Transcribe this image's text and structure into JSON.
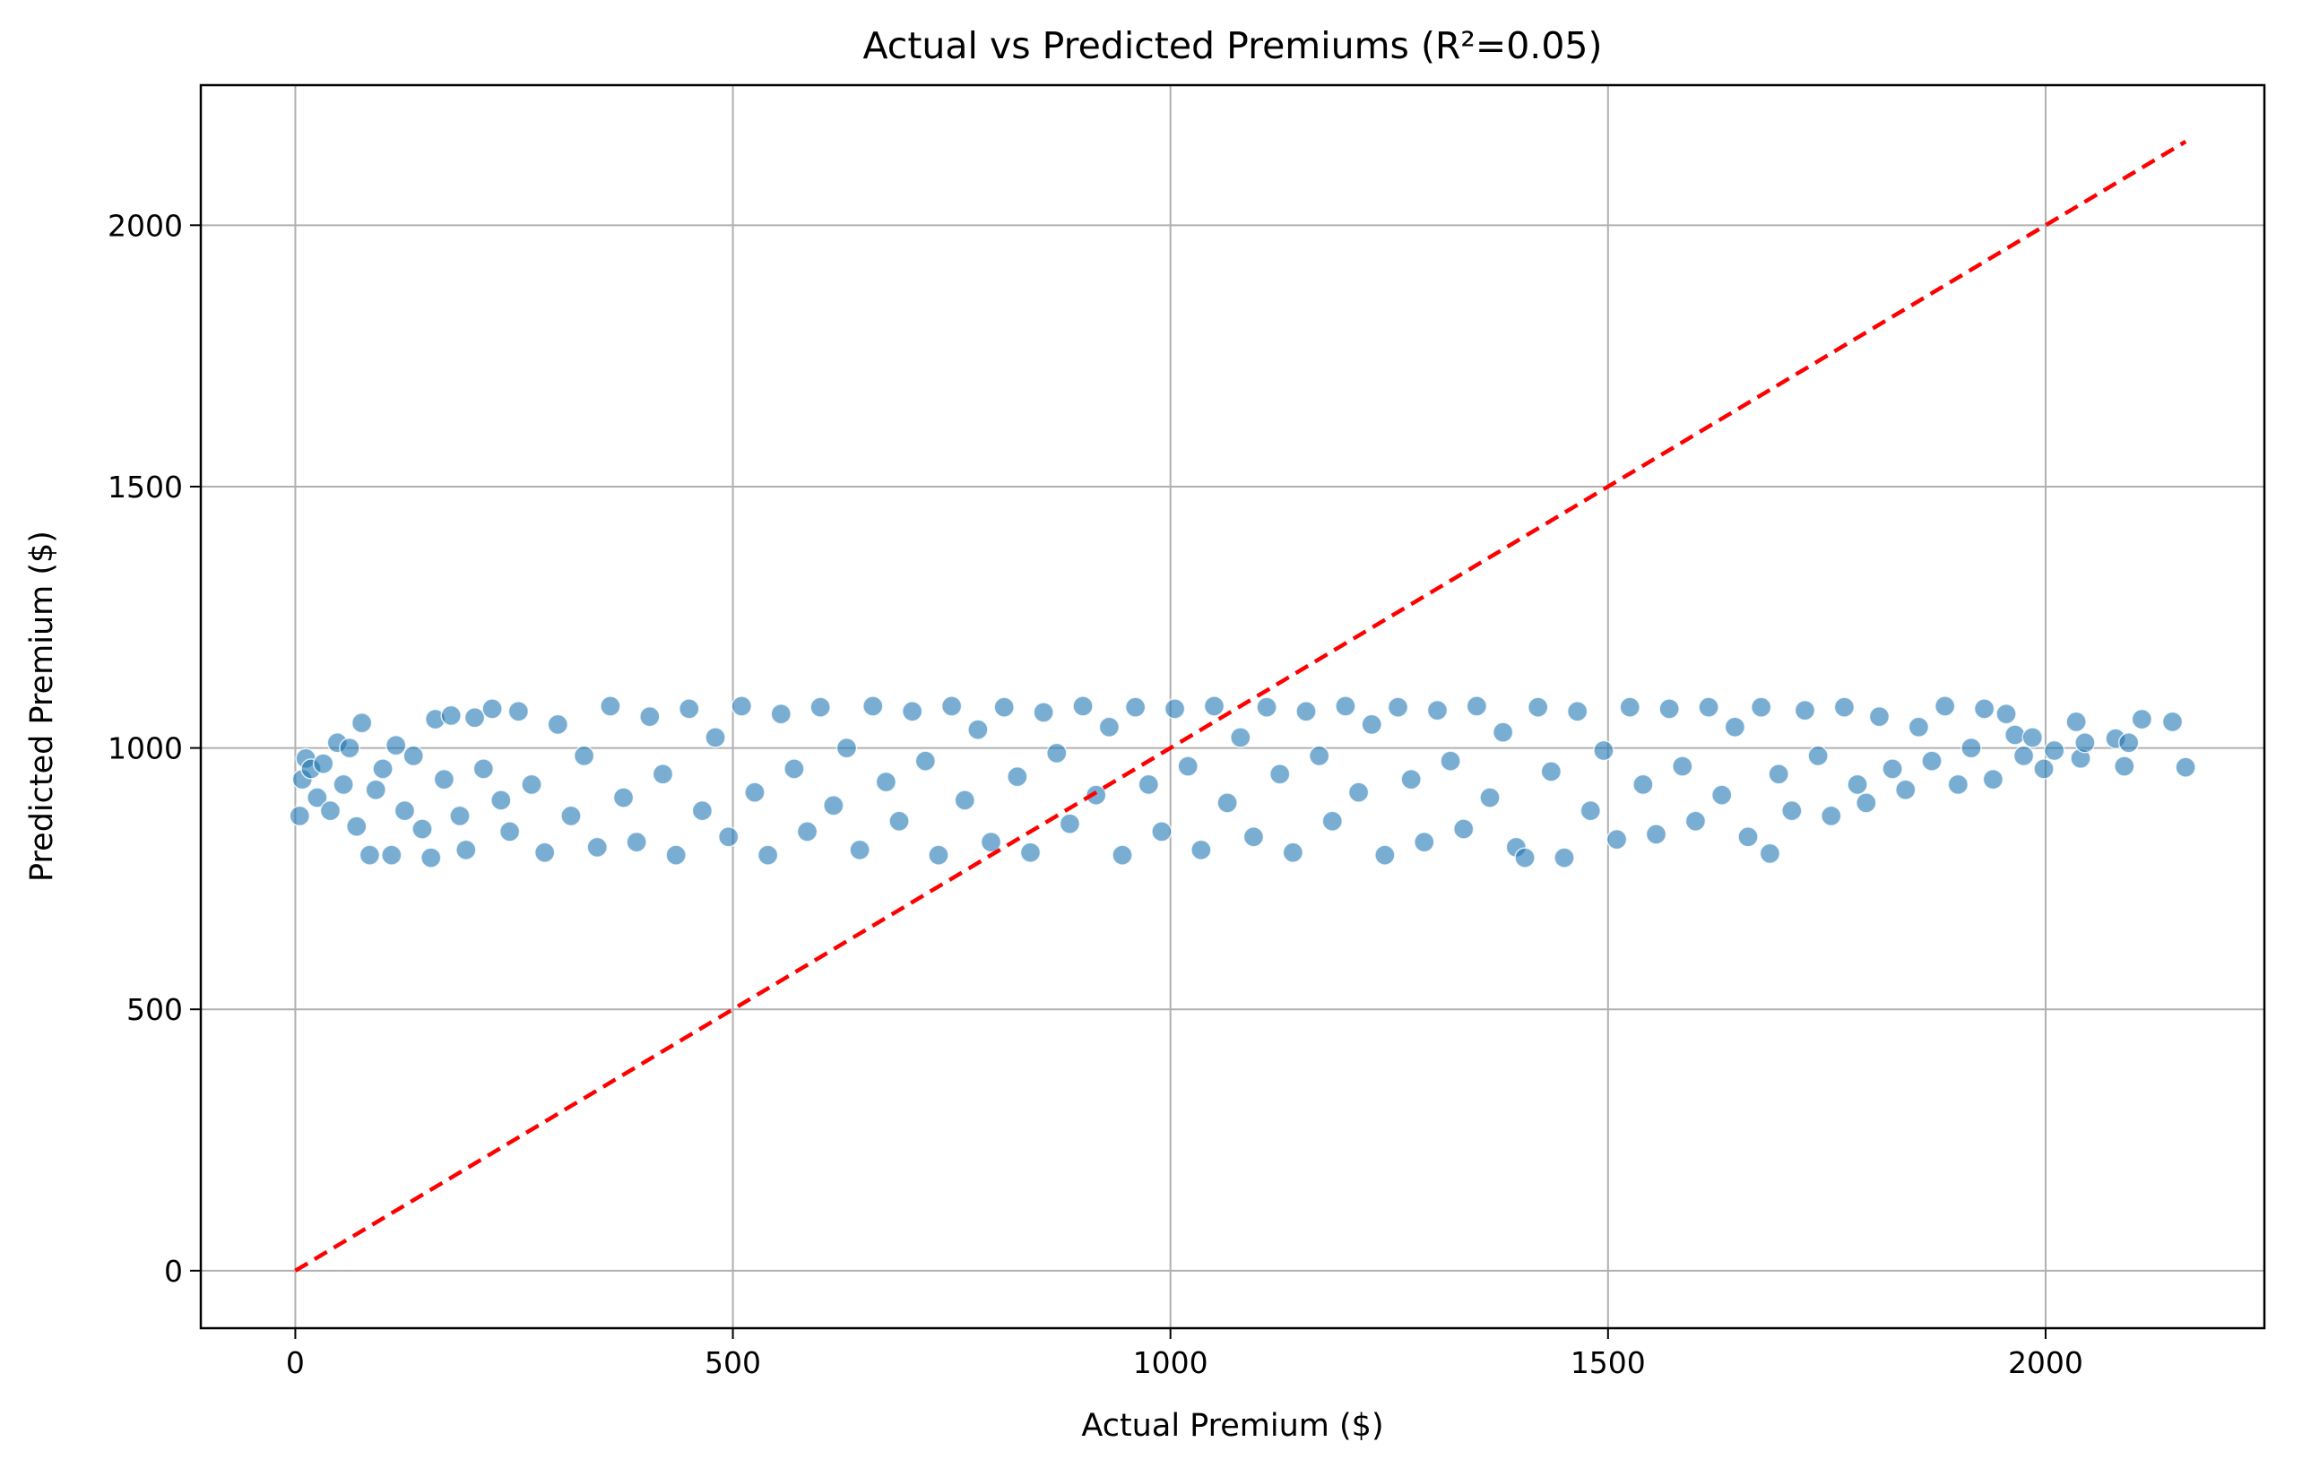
{
  "chart_data": {
    "type": "scatter",
    "title": "Actual vs Predicted Premiums (R²=0.05)",
    "xlabel": "Actual Premium ($)",
    "ylabel": "Predicted Premium ($)",
    "xlim": [
      -108,
      2250
    ],
    "ylim": [
      -110,
      2268
    ],
    "x_ticks": [
      0,
      500,
      1000,
      1500,
      2000
    ],
    "y_ticks": [
      0,
      500,
      1000,
      1500,
      2000
    ],
    "grid": true,
    "point_color": "#1f77b4",
    "point_edge_color": "#ffffff",
    "point_alpha": 0.6,
    "reference_line": {
      "style": "dashed",
      "color": "#ff0000",
      "x": [
        0,
        2160
      ],
      "y": [
        0,
        2160
      ]
    },
    "series": [
      {
        "points": [
          [
            5,
            870
          ],
          [
            8,
            940
          ],
          [
            12,
            980
          ],
          [
            18,
            960
          ],
          [
            25,
            905
          ],
          [
            32,
            970
          ],
          [
            40,
            880
          ],
          [
            48,
            1010
          ],
          [
            55,
            930
          ],
          [
            62,
            1000
          ],
          [
            70,
            850
          ],
          [
            76,
            1048
          ],
          [
            85,
            795
          ],
          [
            92,
            920
          ],
          [
            100,
            960
          ],
          [
            110,
            795
          ],
          [
            115,
            1005
          ],
          [
            125,
            880
          ],
          [
            135,
            985
          ],
          [
            145,
            845
          ],
          [
            155,
            790
          ],
          [
            160,
            1055
          ],
          [
            170,
            940
          ],
          [
            178,
            1062
          ],
          [
            188,
            870
          ],
          [
            195,
            805
          ],
          [
            205,
            1058
          ],
          [
            215,
            960
          ],
          [
            225,
            1075
          ],
          [
            235,
            900
          ],
          [
            245,
            840
          ],
          [
            255,
            1070
          ],
          [
            270,
            930
          ],
          [
            285,
            800
          ],
          [
            300,
            1045
          ],
          [
            315,
            870
          ],
          [
            330,
            985
          ],
          [
            345,
            810
          ],
          [
            360,
            1080
          ],
          [
            375,
            905
          ],
          [
            390,
            820
          ],
          [
            405,
            1060
          ],
          [
            420,
            950
          ],
          [
            435,
            795
          ],
          [
            450,
            1075
          ],
          [
            465,
            880
          ],
          [
            480,
            1020
          ],
          [
            495,
            830
          ],
          [
            510,
            1080
          ],
          [
            525,
            915
          ],
          [
            540,
            795
          ],
          [
            555,
            1065
          ],
          [
            570,
            960
          ],
          [
            585,
            840
          ],
          [
            600,
            1078
          ],
          [
            615,
            890
          ],
          [
            630,
            1000
          ],
          [
            645,
            805
          ],
          [
            660,
            1080
          ],
          [
            675,
            935
          ],
          [
            690,
            860
          ],
          [
            705,
            1070
          ],
          [
            720,
            975
          ],
          [
            735,
            795
          ],
          [
            750,
            1080
          ],
          [
            765,
            900
          ],
          [
            780,
            1035
          ],
          [
            795,
            820
          ],
          [
            810,
            1078
          ],
          [
            825,
            945
          ],
          [
            840,
            800
          ],
          [
            855,
            1068
          ],
          [
            870,
            990
          ],
          [
            885,
            855
          ],
          [
            900,
            1080
          ],
          [
            915,
            910
          ],
          [
            930,
            1040
          ],
          [
            945,
            795
          ],
          [
            960,
            1078
          ],
          [
            975,
            930
          ],
          [
            990,
            840
          ],
          [
            1005,
            1075
          ],
          [
            1020,
            965
          ],
          [
            1035,
            805
          ],
          [
            1050,
            1080
          ],
          [
            1065,
            895
          ],
          [
            1080,
            1020
          ],
          [
            1095,
            830
          ],
          [
            1110,
            1078
          ],
          [
            1125,
            950
          ],
          [
            1140,
            800
          ],
          [
            1155,
            1070
          ],
          [
            1170,
            985
          ],
          [
            1185,
            860
          ],
          [
            1200,
            1080
          ],
          [
            1215,
            915
          ],
          [
            1230,
            1045
          ],
          [
            1245,
            795
          ],
          [
            1260,
            1078
          ],
          [
            1275,
            940
          ],
          [
            1290,
            820
          ],
          [
            1305,
            1072
          ],
          [
            1320,
            975
          ],
          [
            1335,
            845
          ],
          [
            1350,
            1080
          ],
          [
            1365,
            905
          ],
          [
            1380,
            1030
          ],
          [
            1395,
            810
          ],
          [
            1405,
            790
          ],
          [
            1420,
            1078
          ],
          [
            1435,
            955
          ],
          [
            1450,
            790
          ],
          [
            1465,
            1070
          ],
          [
            1480,
            880
          ],
          [
            1495,
            995
          ],
          [
            1510,
            825
          ],
          [
            1525,
            1078
          ],
          [
            1540,
            930
          ],
          [
            1555,
            835
          ],
          [
            1570,
            1075
          ],
          [
            1585,
            965
          ],
          [
            1600,
            860
          ],
          [
            1615,
            1078
          ],
          [
            1630,
            910
          ],
          [
            1645,
            1040
          ],
          [
            1660,
            830
          ],
          [
            1675,
            1078
          ],
          [
            1685,
            798
          ],
          [
            1695,
            950
          ],
          [
            1710,
            880
          ],
          [
            1725,
            1072
          ],
          [
            1740,
            985
          ],
          [
            1755,
            870
          ],
          [
            1770,
            1078
          ],
          [
            1785,
            930
          ],
          [
            1795,
            895
          ],
          [
            1810,
            1060
          ],
          [
            1825,
            960
          ],
          [
            1840,
            920
          ],
          [
            1855,
            1040
          ],
          [
            1870,
            975
          ],
          [
            1885,
            1080
          ],
          [
            1900,
            930
          ],
          [
            1915,
            1000
          ],
          [
            1930,
            1075
          ],
          [
            1940,
            940
          ],
          [
            1955,
            1065
          ],
          [
            1965,
            1025
          ],
          [
            1975,
            985
          ],
          [
            1985,
            1020
          ],
          [
            1998,
            960
          ],
          [
            2010,
            995
          ],
          [
            2035,
            1050
          ],
          [
            2040,
            980
          ],
          [
            2045,
            1010
          ],
          [
            2080,
            1018
          ],
          [
            2090,
            965
          ],
          [
            2095,
            1010
          ],
          [
            2110,
            1055
          ],
          [
            2145,
            1050
          ],
          [
            2160,
            963
          ]
        ]
      }
    ]
  }
}
